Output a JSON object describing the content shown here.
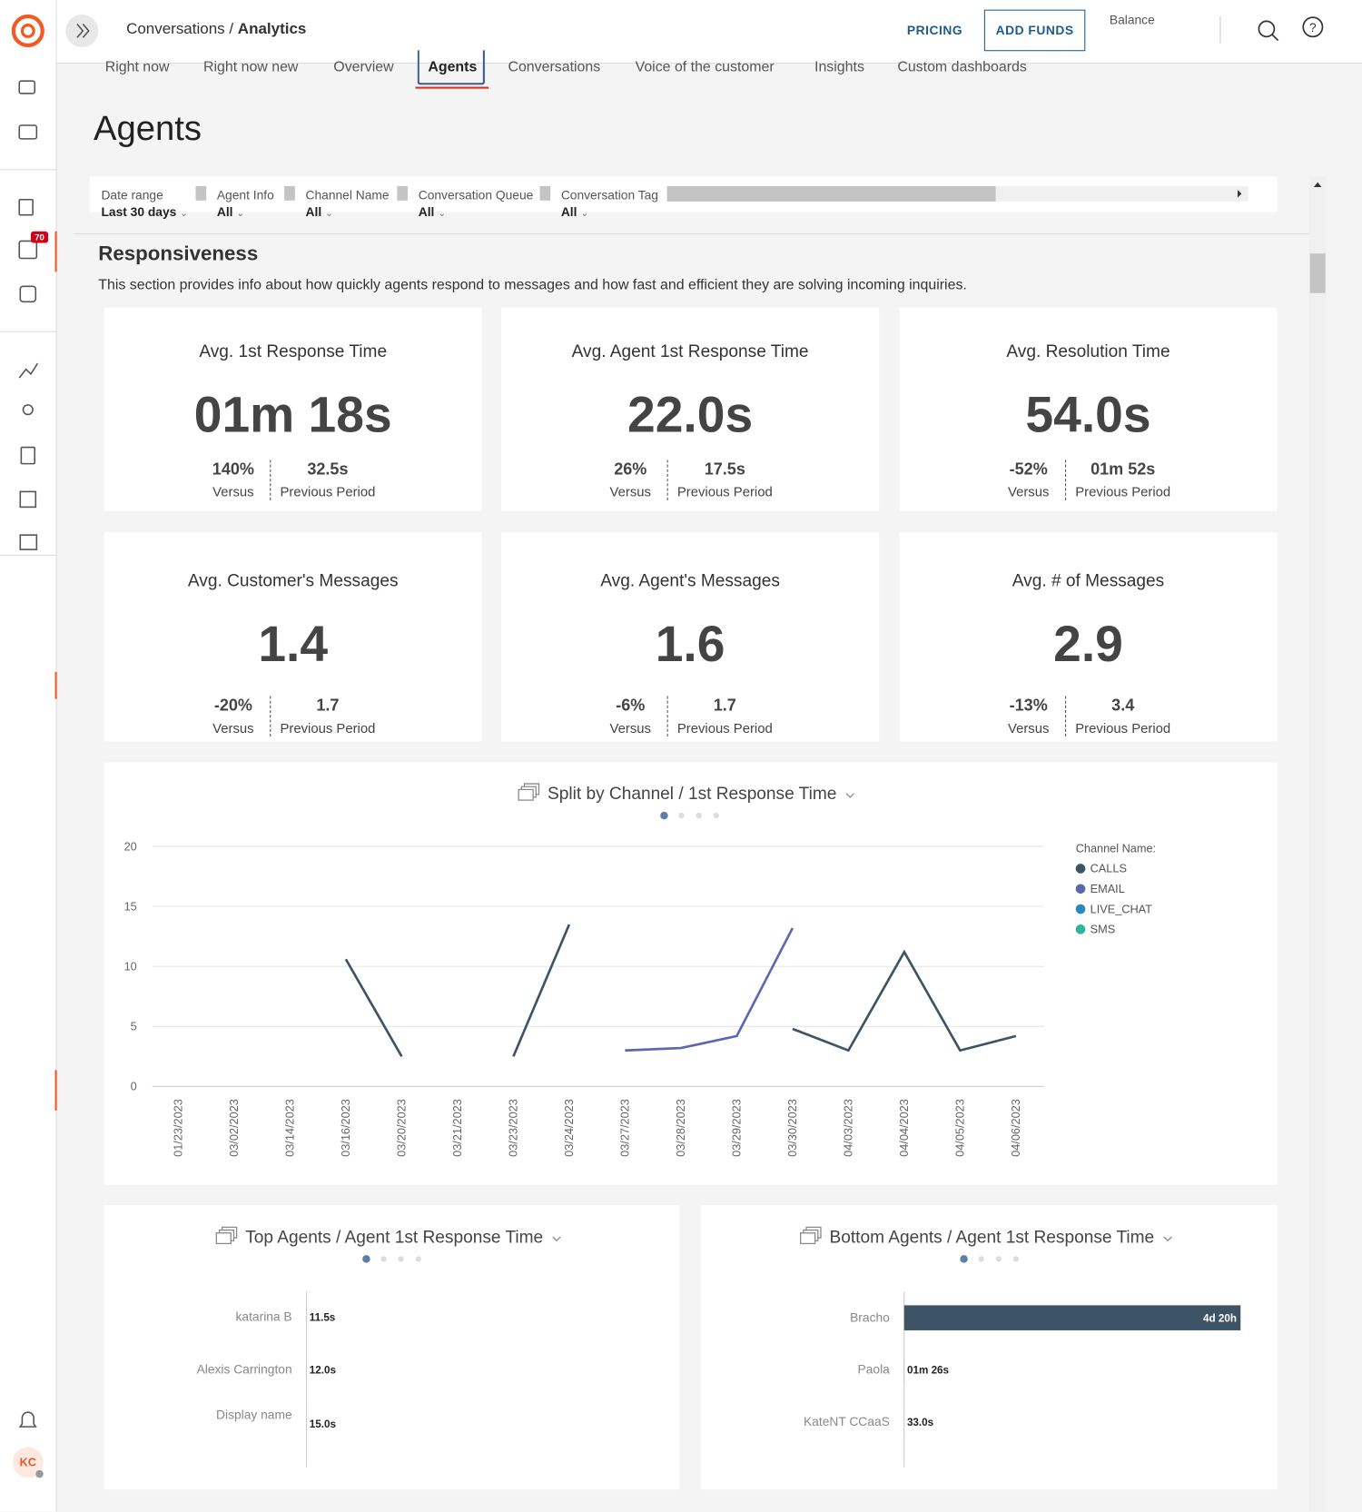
{
  "header": {
    "breadcrumb_parent": "Conversations /",
    "breadcrumb_current": "Analytics",
    "pricing": "PRICING",
    "add_funds": "ADD FUNDS",
    "balance": "Balance"
  },
  "sidebar": {
    "badge": "70",
    "avatar": "KC"
  },
  "tabs": [
    "Right now",
    "Right now new",
    "Overview",
    "Agents",
    "Conversations",
    "Voice of the customer",
    "Insights",
    "Custom dashboards"
  ],
  "active_tab": 3,
  "page_title": "Agents",
  "filters": [
    {
      "label": "Date range",
      "value": "Last 30 days"
    },
    {
      "label": "Agent Info",
      "value": "All"
    },
    {
      "label": "Channel Name",
      "value": "All"
    },
    {
      "label": "Conversation Queue",
      "value": "All"
    },
    {
      "label": "Conversation Tag",
      "value": "All"
    }
  ],
  "section": {
    "title": "Responsiveness",
    "description": "This section provides info about how quickly agents respond to messages and how fast and efficient they are solving incoming inquiries."
  },
  "kpis": [
    {
      "title": "Avg. 1st Response Time",
      "value": "01m 18s",
      "change": "140%",
      "change_label": "Versus",
      "previous": "32.5s",
      "previous_label": "Previous Period"
    },
    {
      "title": "Avg. Agent 1st Response Time",
      "value": "22.0s",
      "change": "26%",
      "change_label": "Versus",
      "previous": "17.5s",
      "previous_label": "Previous Period"
    },
    {
      "title": "Avg. Resolution Time",
      "value": "54.0s",
      "change": "-52%",
      "change_label": "Versus",
      "previous": "01m 52s",
      "previous_label": "Previous Period"
    },
    {
      "title": "Avg. Customer's Messages",
      "value": "1.4",
      "change": "-20%",
      "change_label": "Versus",
      "previous": "1.7",
      "previous_label": "Previous Period"
    },
    {
      "title": "Avg. Agent's Messages",
      "value": "1.6",
      "change": "-6%",
      "change_label": "Versus",
      "previous": "1.7",
      "previous_label": "Previous Period"
    },
    {
      "title": "Avg. # of Messages",
      "value": "2.9",
      "change": "-13%",
      "change_label": "Versus",
      "previous": "3.4",
      "previous_label": "Previous Period"
    }
  ],
  "chart_data": [
    {
      "type": "line",
      "title": "Split by Channel / 1st Response Time",
      "legend_title": "Channel Name:",
      "categories": [
        "01/23/2023",
        "03/02/2023",
        "03/14/2023",
        "03/16/2023",
        "03/20/2023",
        "03/21/2023",
        "03/23/2023",
        "03/24/2023",
        "03/27/2023",
        "03/28/2023",
        "03/29/2023",
        "03/30/2023",
        "04/03/2023",
        "04/04/2023",
        "04/05/2023",
        "04/06/2023"
      ],
      "ylim": [
        0,
        20
      ],
      "yticks": [
        0,
        5,
        10,
        15,
        20
      ],
      "grid": true,
      "series": [
        {
          "name": "CALLS",
          "color": "#3d5366",
          "values": [
            null,
            null,
            null,
            10.6,
            2.5,
            null,
            2.5,
            13.5,
            null,
            null,
            null,
            4.8,
            3,
            11.2,
            3,
            4.2
          ]
        },
        {
          "name": "EMAIL",
          "color": "#5b67b0",
          "values": [
            null,
            null,
            null,
            null,
            null,
            null,
            null,
            null,
            3,
            3.2,
            4.2,
            13.2,
            null,
            null,
            null,
            null
          ]
        },
        {
          "name": "LIVE_CHAT",
          "color": "#2e86c1",
          "values": [
            null,
            null,
            null,
            null,
            null,
            null,
            null,
            null,
            null,
            null,
            null,
            null,
            null,
            null,
            null,
            null
          ]
        },
        {
          "name": "SMS",
          "color": "#2bb59a",
          "values": [
            null,
            null,
            null,
            null,
            null,
            null,
            null,
            null,
            null,
            null,
            null,
            null,
            null,
            null,
            null,
            null
          ]
        }
      ]
    },
    {
      "type": "bar",
      "horizontal": true,
      "title": "Top Agents / Agent 1st Response Time",
      "color": "#3d5366",
      "categories": [
        "katarina B",
        "Alexis Carrington",
        "Display name"
      ],
      "values": [
        11.5,
        12,
        15
      ],
      "value_labels": [
        "11.5s",
        "12.0s",
        "15.0s"
      ],
      "xlim": [
        0,
        417600
      ]
    },
    {
      "type": "bar",
      "horizontal": true,
      "title": "Bottom Agents / Agent 1st Response Time",
      "color": "#3d5366",
      "categories": [
        "Bracho",
        "Paola",
        "KateNT CCaaS"
      ],
      "values": [
        417600,
        86,
        33
      ],
      "value_labels": [
        "4d 20h",
        "01m 26s",
        "33.0s"
      ],
      "xlim": [
        0,
        417600
      ]
    }
  ]
}
